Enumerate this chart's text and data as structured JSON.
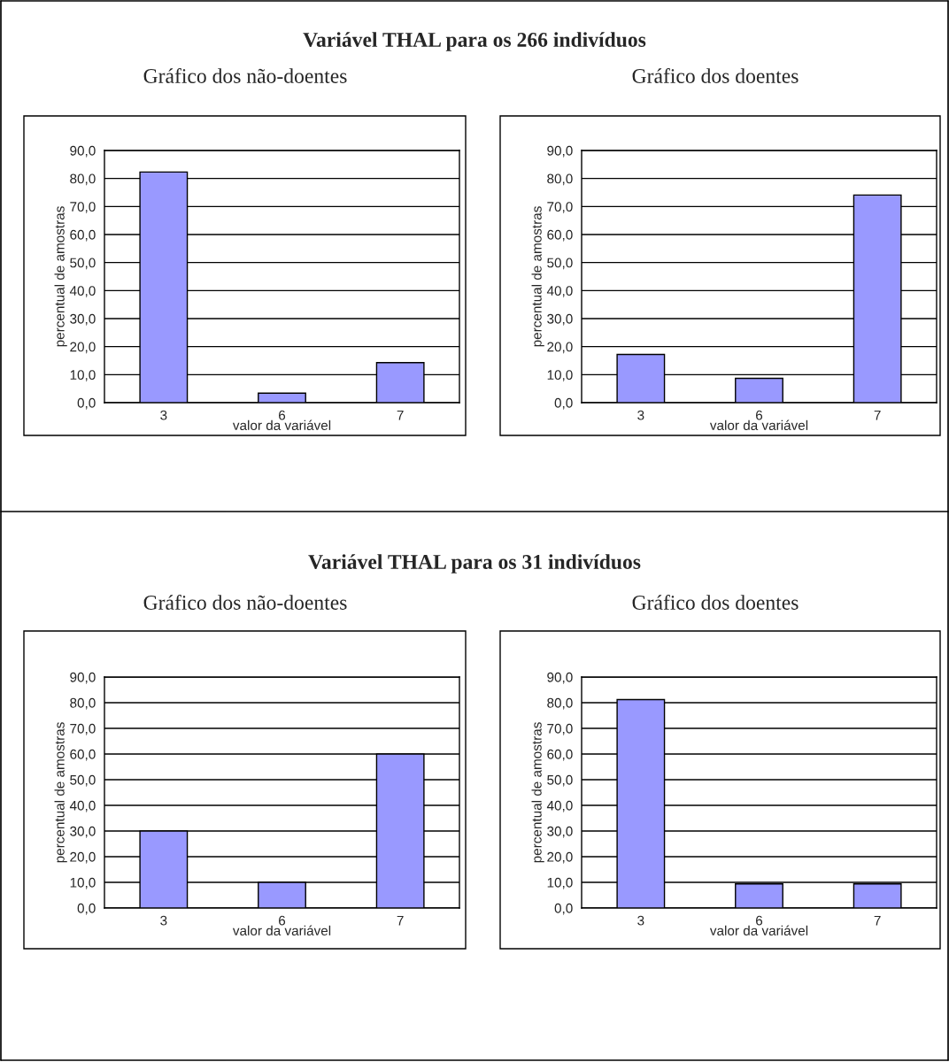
{
  "chart_data": [
    {
      "type": "bar",
      "title": "Variável THAL para os 266 indivíduos",
      "subtitle": "Gráfico dos não-doentes",
      "xlabel": "valor da variável",
      "ylabel": "percentual de amostras",
      "categories": [
        "3",
        "6",
        "7"
      ],
      "values": [
        82.3,
        3.4,
        14.3
      ],
      "color": "#9999ff",
      "ylim": [
        0,
        90
      ],
      "yticks": [
        {
          "value": 0,
          "label": "0,0"
        },
        {
          "value": 10,
          "label": "10,0"
        },
        {
          "value": 20,
          "label": "20,0"
        },
        {
          "value": 30,
          "label": "30,0"
        },
        {
          "value": 40,
          "label": "40,0"
        },
        {
          "value": 50,
          "label": "50,0"
        },
        {
          "value": 60,
          "label": "60,0"
        },
        {
          "value": 70,
          "label": "70,0"
        },
        {
          "value": 80,
          "label": "80,0"
        },
        {
          "value": 90,
          "label": "90,0"
        }
      ],
      "grid": "y",
      "legend": false
    },
    {
      "type": "bar",
      "subtitle": "Gráfico dos doentes",
      "xlabel": "valor da variável",
      "ylabel": "percentual de amostras",
      "categories": [
        "3",
        "6",
        "7"
      ],
      "values": [
        17.2,
        8.7,
        74.1
      ],
      "color": "#9999ff",
      "ylim": [
        0,
        90
      ],
      "yticks": [
        {
          "value": 0,
          "label": "0,0"
        },
        {
          "value": 10,
          "label": "10,0"
        },
        {
          "value": 20,
          "label": "20,0"
        },
        {
          "value": 30,
          "label": "30,0"
        },
        {
          "value": 40,
          "label": "40,0"
        },
        {
          "value": 50,
          "label": "50,0"
        },
        {
          "value": 60,
          "label": "60,0"
        },
        {
          "value": 70,
          "label": "70,0"
        },
        {
          "value": 80,
          "label": "80,0"
        },
        {
          "value": 90,
          "label": "90,0"
        }
      ],
      "grid": "y",
      "legend": false
    },
    {
      "type": "bar",
      "title": "Variável THAL para os 31 indivíduos",
      "subtitle": "Gráfico dos não-doentes",
      "xlabel": "valor da variável",
      "ylabel": "percentual de amostras",
      "categories": [
        "3",
        "6",
        "7"
      ],
      "values": [
        30.0,
        10.0,
        60.0
      ],
      "color": "#9999ff",
      "ylim": [
        0,
        90
      ],
      "yticks": [
        {
          "value": 0,
          "label": "0,0"
        },
        {
          "value": 10,
          "label": "10,0"
        },
        {
          "value": 20,
          "label": "20,0"
        },
        {
          "value": 30,
          "label": "30,0"
        },
        {
          "value": 40,
          "label": "40,0"
        },
        {
          "value": 50,
          "label": "50,0"
        },
        {
          "value": 60,
          "label": "60,0"
        },
        {
          "value": 70,
          "label": "70,0"
        },
        {
          "value": 80,
          "label": "80,0"
        },
        {
          "value": 90,
          "label": "90,0"
        }
      ],
      "grid": "y",
      "legend": false
    },
    {
      "type": "bar",
      "subtitle": "Gráfico dos doentes",
      "xlabel": "valor da variável",
      "ylabel": "percentual de amostras",
      "categories": [
        "3",
        "6",
        "7"
      ],
      "values": [
        81.2,
        9.4,
        9.4
      ],
      "color": "#9999ff",
      "ylim": [
        0,
        90
      ],
      "yticks": [
        {
          "value": 0,
          "label": "0,0"
        },
        {
          "value": 10,
          "label": "10,0"
        },
        {
          "value": 20,
          "label": "20,0"
        },
        {
          "value": 30,
          "label": "30,0"
        },
        {
          "value": 40,
          "label": "40,0"
        },
        {
          "value": 50,
          "label": "50,0"
        },
        {
          "value": 60,
          "label": "60,0"
        },
        {
          "value": 70,
          "label": "70,0"
        },
        {
          "value": 80,
          "label": "80,0"
        },
        {
          "value": 90,
          "label": "90,0"
        }
      ],
      "grid": "y",
      "legend": false
    }
  ]
}
